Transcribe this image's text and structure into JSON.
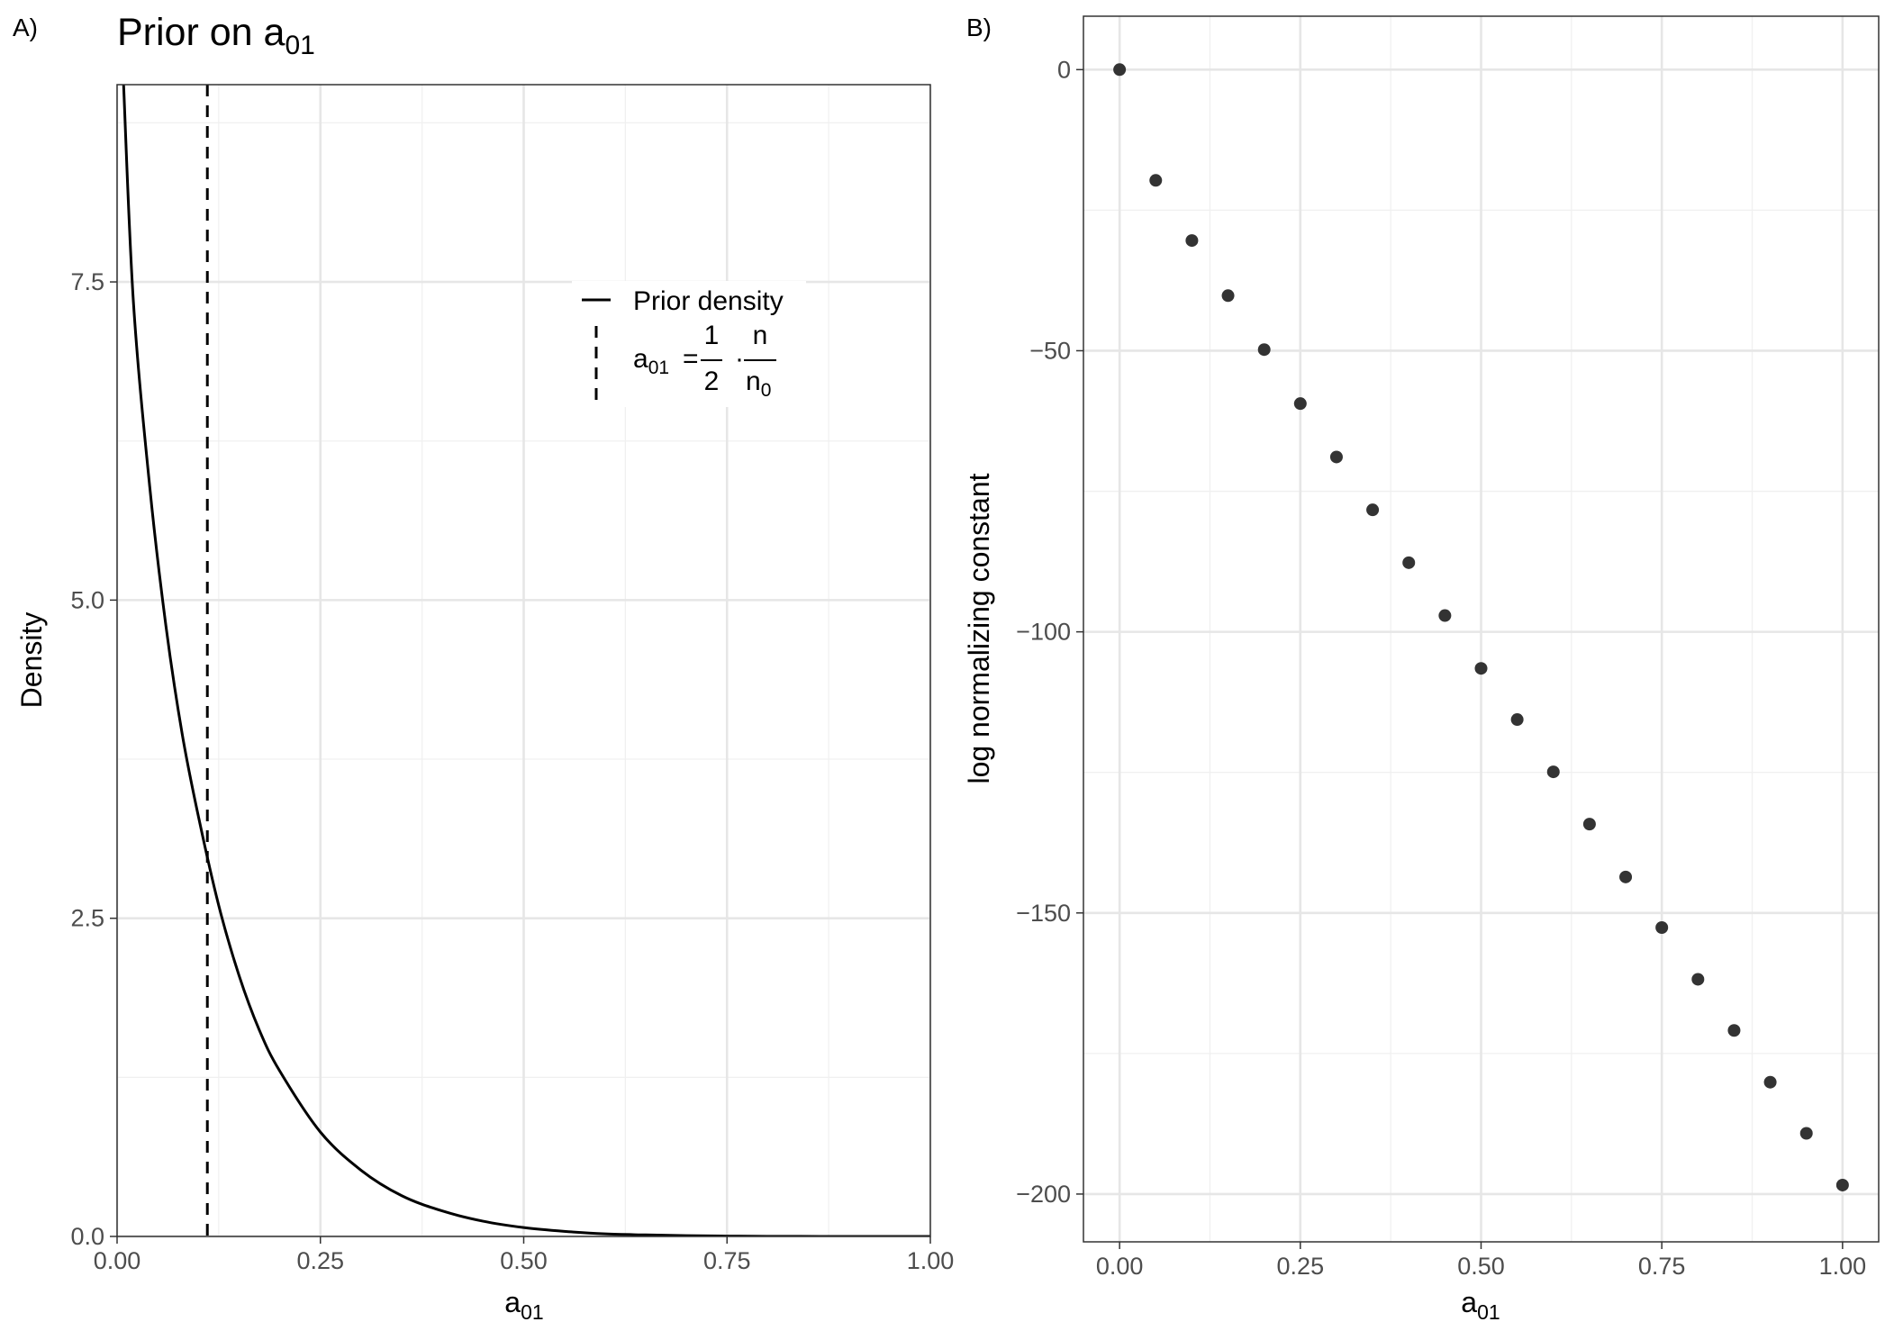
{
  "chart_data": [
    {
      "panel_label": "A)",
      "type": "line",
      "title_main": "Prior on a",
      "title_sub": "01",
      "xlabel_main": "a",
      "xlabel_sub": "01",
      "ylabel": "Density",
      "xlim": [
        0,
        1
      ],
      "ylim": [
        0,
        9.05
      ],
      "x_ticks": [
        0,
        0.25,
        0.5,
        0.75,
        1
      ],
      "x_tick_labels": [
        "0.00",
        "0.25",
        "0.50",
        "0.75",
        "1.00"
      ],
      "y_ticks": [
        0,
        2.5,
        5,
        7.5
      ],
      "y_tick_labels": [
        "0.0",
        "2.5",
        "5.0",
        "7.5"
      ],
      "grid": true,
      "legend_position": "top-right",
      "series": [
        {
          "name": "Prior density",
          "style": "solid",
          "x": [
            0.008,
            0.02,
            0.04,
            0.06,
            0.08,
            0.1,
            0.125,
            0.15,
            0.175,
            0.2,
            0.25,
            0.3,
            0.35,
            0.4,
            0.45,
            0.5,
            0.55,
            0.6,
            0.65,
            0.7,
            0.75,
            0.8,
            0.9,
            1.0
          ],
          "y": [
            9.05,
            7.35,
            5.9,
            4.8,
            3.95,
            3.3,
            2.6,
            2.05,
            1.62,
            1.3,
            0.82,
            0.52,
            0.32,
            0.2,
            0.12,
            0.07,
            0.04,
            0.02,
            0.012,
            0.006,
            0.003,
            0.001,
            0.0,
            0.0
          ]
        }
      ],
      "vline": {
        "x": 0.111,
        "style": "dashed",
        "legend_label": {
          "lhs_main": "a",
          "lhs_sub": "01",
          "equals": "=",
          "frac1_num": "1",
          "frac1_den": "2",
          "dot": "·",
          "frac2_num": "n",
          "frac2_den_main": "n",
          "frac2_den_sub": "0"
        }
      }
    },
    {
      "panel_label": "B)",
      "type": "scatter",
      "xlabel_main": "a",
      "xlabel_sub": "01",
      "ylabel": "log normalizing constant",
      "xlim": [
        -0.05,
        1.05
      ],
      "ylim": [
        -208.5,
        9.5
      ],
      "x_ticks": [
        0,
        0.25,
        0.5,
        0.75,
        1
      ],
      "x_tick_labels": [
        "0.00",
        "0.25",
        "0.50",
        "0.75",
        "1.00"
      ],
      "y_ticks": [
        0,
        -50,
        -100,
        -150,
        -200
      ],
      "y_tick_labels": [
        "0",
        "−50",
        "−100",
        "−150",
        "−200"
      ],
      "grid": true,
      "point_color": "#333333",
      "x": [
        0,
        0.05,
        0.1,
        0.15,
        0.2,
        0.25,
        0.3,
        0.35,
        0.4,
        0.45,
        0.5,
        0.55,
        0.6,
        0.65,
        0.7,
        0.75,
        0.8,
        0.85,
        0.9,
        0.95,
        1.0
      ],
      "y": [
        0,
        -19.7,
        -30.4,
        -40.2,
        -49.8,
        -59.4,
        -68.9,
        -78.3,
        -87.7,
        -97.1,
        -106.5,
        -115.6,
        -124.9,
        -134.2,
        -143.6,
        -152.6,
        -161.8,
        -170.9,
        -180.1,
        -189.2,
        -198.4
      ]
    }
  ]
}
